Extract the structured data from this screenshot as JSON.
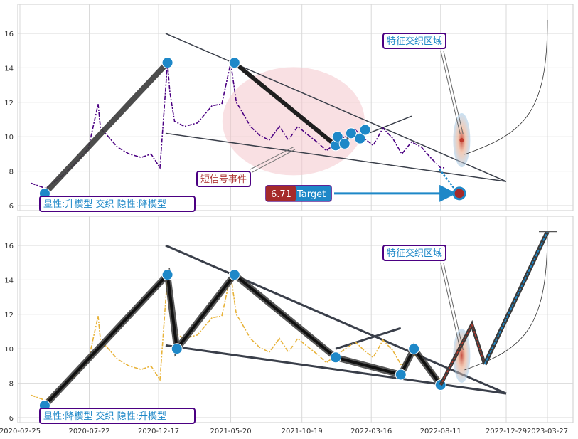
{
  "chart_data": [
    {
      "type": "line",
      "panel": "top",
      "ylim": [
        5.7,
        17.6
      ],
      "y_ticks": [
        6,
        8,
        10,
        12,
        14,
        16
      ],
      "grid": true,
      "price_line_color": "#4b0082",
      "series": [
        {
          "x": [
            "2020-03-20",
            "2020-04-20",
            "2020-05-20",
            "2020-06-20",
            "2020-07-20",
            "2020-08-10",
            "2020-08-15",
            "2020-09-01",
            "2020-09-20",
            "2020-10-15",
            "2020-11-10",
            "2020-12-01",
            "2020-12-20",
            "2021-01-05",
            "2021-01-10",
            "2021-01-20",
            "2021-02-10",
            "2021-03-10",
            "2021-04-10",
            "2021-05-01",
            "2021-05-20",
            "2021-06-01",
            "2021-06-10",
            "2021-07-01",
            "2021-07-20",
            "2021-08-10",
            "2021-09-01",
            "2021-09-20",
            "2021-10-10",
            "2021-11-01",
            "2021-11-20",
            "2021-12-10",
            "2021-12-30",
            "2022-01-20",
            "2022-02-10",
            "2022-03-01",
            "2022-03-20",
            "2022-04-10",
            "2022-05-01",
            "2022-05-20",
            "2022-06-10",
            "2022-07-01",
            "2022-07-20",
            "2022-08-11",
            "2022-08-20"
          ],
          "values": [
            7.3,
            7.0,
            7.6,
            8.4,
            9.3,
            11.9,
            10.5,
            10.0,
            9.4,
            9.0,
            8.8,
            9.0,
            8.2,
            14.3,
            12.6,
            10.9,
            10.6,
            10.8,
            11.8,
            11.9,
            14.3,
            12.0,
            11.6,
            10.6,
            10.1,
            9.8,
            10.6,
            9.8,
            10.6,
            10.1,
            9.7,
            9.2,
            9.6,
            10.0,
            10.4,
            9.9,
            9.5,
            10.5,
            9.9,
            9.0,
            9.7,
            9.4,
            8.8,
            8.2,
            8.2
          ]
        }
      ],
      "pattern_points": {
        "x": [
          "2020-04-18",
          "2021-01-05",
          "2021-05-28",
          "2021-12-30",
          "2022-01-03",
          "2022-01-18",
          "2022-02-01",
          "2022-02-20",
          "2022-03-03"
        ],
        "y": [
          6.7,
          14.3,
          14.3,
          9.5,
          10.0,
          9.6,
          10.2,
          9.9,
          10.4
        ]
      },
      "trend_lines": [
        {
          "x": [
            "2021-01-01",
            "2022-12-29"
          ],
          "y": [
            16.0,
            7.4
          ]
        },
        {
          "x": [
            "2021-01-01",
            "2022-12-29"
          ],
          "y": [
            10.2,
            7.4
          ]
        },
        {
          "x": [
            "2022-02-20",
            "2022-06-10"
          ],
          "y": [
            10.0,
            11.2
          ]
        }
      ],
      "signal_ellipse_center": {
        "x": "2021-10-01",
        "y": 10.9
      },
      "target": {
        "x": "2022-09-20",
        "y": 6.71,
        "value": "6.71",
        "label": "Target"
      },
      "annotations": {
        "feature_zone": "特征交织区域",
        "short_signal": "短信号事件",
        "pattern_label": "显性:升楔型 交织 隐性:降楔型"
      }
    },
    {
      "type": "line",
      "panel": "bottom",
      "ylim": [
        5.7,
        17.6
      ],
      "y_ticks": [
        6,
        8,
        10,
        12,
        14,
        16
      ],
      "grid": true,
      "price_line_color": "#e8b33a",
      "series": [
        {
          "x": [
            "2020-03-20",
            "2020-04-20",
            "2020-05-20",
            "2020-06-20",
            "2020-07-20",
            "2020-08-10",
            "2020-08-15",
            "2020-09-01",
            "2020-09-20",
            "2020-10-15",
            "2020-11-10",
            "2020-12-01",
            "2020-12-20",
            "2021-01-05",
            "2021-01-10",
            "2021-01-20",
            "2021-02-10",
            "2021-03-10",
            "2021-04-10",
            "2021-05-01",
            "2021-05-20",
            "2021-06-01",
            "2021-06-10",
            "2021-07-01",
            "2021-07-20",
            "2021-08-10",
            "2021-09-01",
            "2021-09-20",
            "2021-10-10",
            "2021-11-01",
            "2021-11-20",
            "2021-12-10",
            "2021-12-30",
            "2022-01-20",
            "2022-02-10",
            "2022-03-01",
            "2022-03-20",
            "2022-04-10",
            "2022-05-01",
            "2022-05-20",
            "2022-06-10",
            "2022-07-01",
            "2022-07-20",
            "2022-08-11",
            "2022-08-20"
          ],
          "values": [
            7.3,
            7.0,
            7.6,
            8.4,
            9.3,
            11.9,
            10.5,
            10.0,
            9.4,
            9.0,
            8.8,
            9.0,
            8.2,
            14.3,
            12.6,
            10.9,
            10.6,
            10.8,
            11.8,
            11.9,
            14.3,
            12.0,
            11.6,
            10.6,
            10.1,
            9.8,
            10.6,
            9.8,
            10.6,
            10.1,
            9.7,
            9.2,
            9.6,
            10.0,
            10.4,
            9.9,
            9.5,
            10.5,
            9.9,
            9.0,
            9.7,
            9.4,
            8.8,
            8.2,
            8.2
          ]
        }
      ],
      "pattern_points": {
        "x": [
          "2020-04-18",
          "2021-01-05",
          "2021-01-25",
          "2021-05-28",
          "2021-12-30",
          "2022-05-18",
          "2022-06-15",
          "2022-08-11"
        ],
        "y": [
          6.7,
          14.3,
          10.0,
          14.3,
          9.5,
          8.5,
          10.0,
          7.9
        ]
      },
      "trend_lines": [
        {
          "x": [
            "2021-01-01",
            "2022-12-29"
          ],
          "y": [
            16.0,
            7.4
          ]
        },
        {
          "x": [
            "2021-01-01",
            "2022-12-29"
          ],
          "y": [
            10.2,
            7.4
          ]
        },
        {
          "x": [
            "2021-12-30",
            "2022-05-18"
          ],
          "y": [
            10.0,
            11.2
          ]
        }
      ],
      "projection": {
        "x": [
          "2022-08-11",
          "2023-03-27"
        ],
        "y": [
          7.9,
          16.8
        ]
      },
      "annotations": {
        "feature_zone": "特征交织区域",
        "pattern_label": "显性:降楔型 交织 隐性:升楔型"
      }
    }
  ],
  "x_axis": {
    "min": "2020-02-25",
    "max": "2023-04-12",
    "tick_labels": [
      "2020-02-25",
      "2020-07-22",
      "2020-12-17",
      "2021-05-20",
      "2021-10-19",
      "2022-03-16",
      "2022-08-11",
      "2022-12-29",
      "2023-03-27"
    ]
  },
  "colors": {
    "pattern_line": "#1f1f1f",
    "pattern_point": "#1e88c8",
    "trend_line": "#3a3f4a",
    "box_border": "#4b0082",
    "box_text": "#1e88c8",
    "signal_text": "#b03a3a",
    "target_value_bg": "#a52a2a",
    "target_label_bg": "#1e88c8"
  }
}
